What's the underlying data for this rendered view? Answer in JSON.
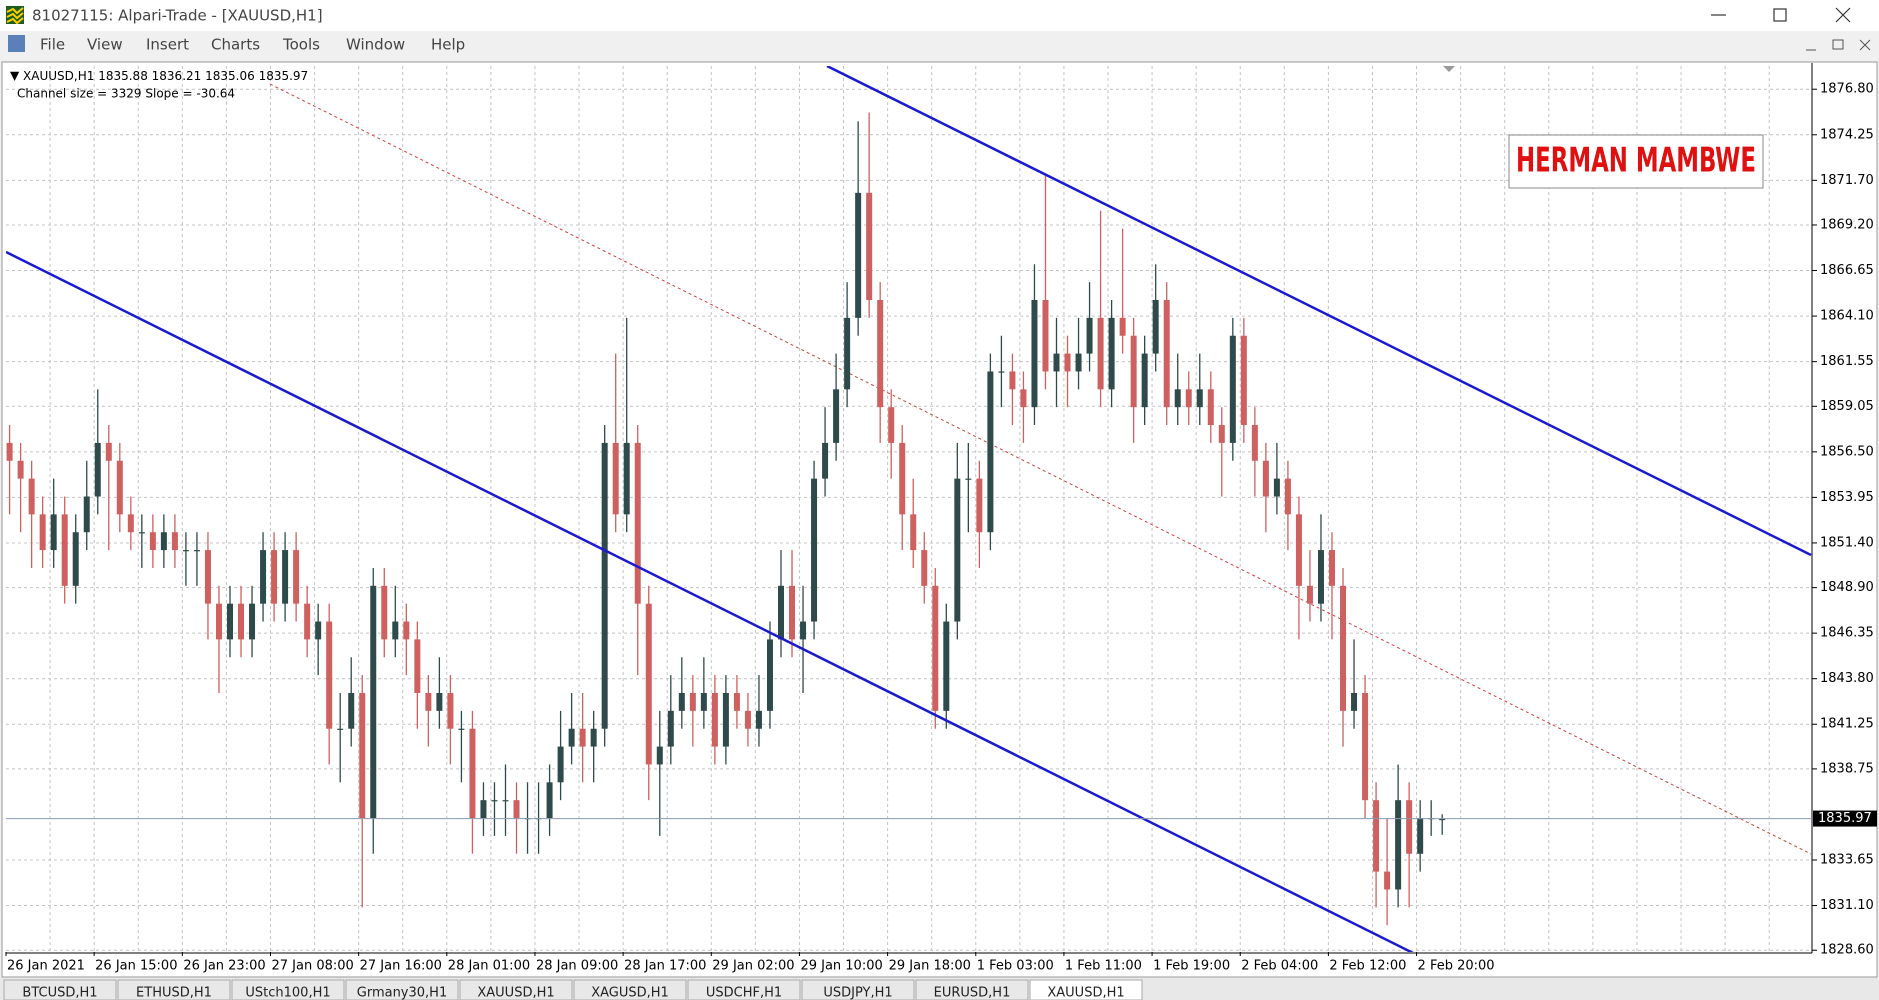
{
  "window": {
    "title": "81027115: Alpari-Trade - [XAUUSD,H1]"
  },
  "menu": [
    "File",
    "View",
    "Insert",
    "Charts",
    "Tools",
    "Window",
    "Help"
  ],
  "chart_data": {
    "type": "candlestick",
    "symbol": "XAUUSD,H1",
    "channel_text": "Channel size = 3329 Slope = -30.64",
    "watermark": "HERMAN MAMBWE",
    "up_color": "#2f4a4a",
    "down_color": "#cf6060",
    "ylim": [
      1828.5,
      1878.1
    ],
    "yticks": [
      {
        "value": 1876.8,
        "label": "1876.80"
      },
      1874.25,
      {
        "value": 1871.7,
        "label": "1871.70"
      },
      {
        "value": 1869.2,
        "label": "1869.20"
      },
      1866.65,
      {
        "value": 1864.1,
        "label": "1864.10"
      },
      1861.55,
      1859.05,
      {
        "value": 1856.5,
        "label": "1856.50"
      },
      1853.95,
      {
        "value": 1851.4,
        "label": "1851.40"
      },
      {
        "value": 1848.9,
        "label": "1848.90"
      },
      1846.35,
      {
        "value": 1843.8,
        "label": "1843.80"
      },
      1841.25,
      1838.75,
      1833.65,
      {
        "value": 1831.1,
        "label": "1831.10"
      },
      {
        "value": 1828.6,
        "label": "1828.60"
      }
    ],
    "x_labels": [
      "26 Jan 2021",
      "26 Jan 15:00",
      "26 Jan 23:00",
      "27 Jan 08:00",
      "27 Jan 16:00",
      "28 Jan 01:00",
      "28 Jan 09:00",
      "28 Jan 17:00",
      "29 Jan 02:00",
      "29 Jan 10:00",
      "29 Jan 18:00",
      "1 Feb 03:00",
      "1 Feb 11:00",
      "1 Feb 19:00",
      "2 Feb 04:00",
      "2 Feb 12:00",
      "2 Feb 20:00"
    ],
    "candles": [
      [
        1857,
        1858,
        1853,
        1856
      ],
      [
        1856,
        1857,
        1852,
        1855
      ],
      [
        1855,
        1856,
        1850,
        1853
      ],
      [
        1853,
        1854,
        1850,
        1851
      ],
      [
        1851,
        1855,
        1850,
        1853
      ],
      [
        1853,
        1854,
        1848,
        1849
      ],
      [
        1849,
        1853,
        1848,
        1852
      ],
      [
        1852,
        1856,
        1851,
        1854
      ],
      [
        1854,
        1860,
        1853,
        1857
      ],
      [
        1857,
        1858,
        1851,
        1856
      ],
      [
        1856,
        1857,
        1852,
        1853
      ],
      [
        1853,
        1854,
        1851,
        1852
      ],
      [
        1852,
        1853,
        1850,
        1852
      ],
      [
        1852,
        1853,
        1850,
        1851
      ],
      [
        1851,
        1853,
        1850,
        1852
      ],
      [
        1852,
        1853,
        1850,
        1851
      ],
      [
        1851,
        1852,
        1849,
        1851
      ],
      [
        1851,
        1852,
        1849,
        1851
      ],
      [
        1851,
        1852,
        1846,
        1848
      ],
      [
        1848,
        1849,
        1843,
        1846
      ],
      [
        1846,
        1849,
        1845,
        1848
      ],
      [
        1848,
        1849,
        1845,
        1846
      ],
      [
        1846,
        1849,
        1845,
        1848
      ],
      [
        1848,
        1852,
        1847,
        1851
      ],
      [
        1851,
        1852,
        1847,
        1848
      ],
      [
        1848,
        1852,
        1847,
        1851
      ],
      [
        1851,
        1852,
        1847,
        1848
      ],
      [
        1848,
        1849,
        1845,
        1846
      ],
      [
        1846,
        1848,
        1844,
        1847
      ],
      [
        1847,
        1848,
        1839,
        1841
      ],
      [
        1841,
        1843,
        1838,
        1841
      ],
      [
        1841,
        1845,
        1840,
        1843
      ],
      [
        1843,
        1844,
        1831,
        1836
      ],
      [
        1836,
        1850,
        1834,
        1849
      ],
      [
        1849,
        1850,
        1845,
        1846
      ],
      [
        1846,
        1849,
        1845,
        1847
      ],
      [
        1847,
        1848,
        1844,
        1846
      ],
      [
        1846,
        1847,
        1841,
        1843
      ],
      [
        1843,
        1844,
        1840,
        1842
      ],
      [
        1842,
        1845,
        1841,
        1843
      ],
      [
        1843,
        1844,
        1839,
        1841
      ],
      [
        1841,
        1842,
        1838,
        1841
      ],
      [
        1841,
        1842,
        1834,
        1836
      ],
      [
        1836,
        1838,
        1835,
        1837
      ],
      [
        1837,
        1838,
        1835,
        1837
      ],
      [
        1837,
        1839,
        1835,
        1837
      ],
      [
        1837,
        1838,
        1834,
        1836
      ],
      [
        1836,
        1838,
        1834,
        1836
      ],
      [
        1836,
        1838,
        1834,
        1836
      ],
      [
        1836,
        1839,
        1835,
        1838
      ],
      [
        1838,
        1842,
        1837,
        1840
      ],
      [
        1840,
        1843,
        1839,
        1841
      ],
      [
        1841,
        1843,
        1838,
        1840
      ],
      [
        1840,
        1842,
        1838,
        1841
      ],
      [
        1841,
        1858,
        1840,
        1857
      ],
      [
        1857,
        1862,
        1852,
        1853
      ],
      [
        1853,
        1864,
        1852,
        1857
      ],
      [
        1857,
        1858,
        1844,
        1848
      ],
      [
        1848,
        1849,
        1837,
        1839
      ],
      [
        1839,
        1842,
        1835,
        1840
      ],
      [
        1840,
        1844,
        1839,
        1842
      ],
      [
        1842,
        1845,
        1841,
        1843
      ],
      [
        1843,
        1844,
        1840,
        1842
      ],
      [
        1842,
        1845,
        1841,
        1843
      ],
      [
        1843,
        1844,
        1839,
        1840
      ],
      [
        1840,
        1844,
        1839,
        1843
      ],
      [
        1843,
        1844,
        1841,
        1842
      ],
      [
        1842,
        1843,
        1840,
        1841
      ],
      [
        1841,
        1844,
        1840,
        1842
      ],
      [
        1842,
        1847,
        1841,
        1846
      ],
      [
        1846,
        1851,
        1845,
        1849
      ],
      [
        1849,
        1851,
        1845,
        1846
      ],
      [
        1846,
        1849,
        1843,
        1847
      ],
      [
        1847,
        1856,
        1846,
        1855
      ],
      [
        1855,
        1859,
        1854,
        1857
      ],
      [
        1857,
        1862,
        1856,
        1860
      ],
      [
        1860,
        1866,
        1859,
        1864
      ],
      [
        1864,
        1875,
        1863,
        1871
      ],
      [
        1871,
        1875.5,
        1864,
        1865
      ],
      [
        1865,
        1866,
        1857,
        1859
      ],
      [
        1859,
        1860,
        1855,
        1857
      ],
      [
        1857,
        1858,
        1851,
        1853
      ],
      [
        1853,
        1855,
        1850,
        1851
      ],
      [
        1851,
        1852,
        1848,
        1849
      ],
      [
        1849,
        1850,
        1841,
        1842
      ],
      [
        1842,
        1848,
        1841,
        1847
      ],
      [
        1847,
        1857,
        1846,
        1855
      ],
      [
        1855,
        1857,
        1852,
        1855
      ],
      [
        1855,
        1856,
        1850,
        1852
      ],
      [
        1852,
        1862,
        1851,
        1861
      ],
      [
        1861,
        1863,
        1859,
        1861
      ],
      [
        1861,
        1862,
        1858,
        1860
      ],
      [
        1860,
        1861,
        1857,
        1859
      ],
      [
        1859,
        1867,
        1858,
        1865
      ],
      [
        1865,
        1872,
        1860,
        1861
      ],
      [
        1861,
        1864,
        1859,
        1862
      ],
      [
        1862,
        1863,
        1859,
        1861
      ],
      [
        1861,
        1864,
        1860,
        1862
      ],
      [
        1862,
        1866,
        1861,
        1864
      ],
      [
        1864,
        1870,
        1859,
        1860
      ],
      [
        1860,
        1865,
        1859,
        1864
      ],
      [
        1864,
        1869,
        1862,
        1863
      ],
      [
        1863,
        1864,
        1857,
        1859
      ],
      [
        1859,
        1863,
        1858,
        1862
      ],
      [
        1862,
        1867,
        1861,
        1865
      ],
      [
        1865,
        1866,
        1858,
        1859
      ],
      [
        1859,
        1862,
        1858,
        1860
      ],
      [
        1860,
        1861,
        1858,
        1859
      ],
      [
        1859,
        1862,
        1858,
        1860
      ],
      [
        1860,
        1861,
        1857,
        1858
      ],
      [
        1858,
        1859,
        1854,
        1857
      ],
      [
        1857,
        1864,
        1856,
        1863
      ],
      [
        1863,
        1864,
        1857,
        1858
      ],
      [
        1858,
        1859,
        1854,
        1856
      ],
      [
        1856,
        1857,
        1852,
        1854
      ],
      [
        1854,
        1857,
        1853,
        1855
      ],
      [
        1855,
        1856,
        1851,
        1853
      ],
      [
        1853,
        1854,
        1846,
        1849
      ],
      [
        1849,
        1851,
        1847,
        1848
      ],
      [
        1848,
        1853,
        1847,
        1851
      ],
      [
        1851,
        1852,
        1846,
        1849
      ],
      [
        1849,
        1850,
        1840,
        1842
      ],
      [
        1842,
        1846,
        1841,
        1843
      ],
      [
        1843,
        1844,
        1836,
        1837
      ],
      [
        1837,
        1838,
        1831,
        1833
      ],
      [
        1833,
        1836,
        1830,
        1832
      ],
      [
        1832,
        1839,
        1831,
        1837
      ],
      [
        1837,
        1838,
        1831,
        1834
      ],
      [
        1834,
        1837,
        1833,
        1836
      ],
      [
        1836,
        1837,
        1835,
        1836
      ],
      [
        1835.88,
        1836.21,
        1835.06,
        1835.97
      ]
    ]
  },
  "tabs": [
    "BTCUSD,H1",
    "ETHUSD,H1",
    "UStch100,H1",
    "Grmany30,H1",
    "XAUUSD,H1",
    "XAGUSD,H1",
    "USDCHF,H1",
    "USDJPY,H1",
    "EURUSD,H1",
    "XAUUSD,H1"
  ]
}
